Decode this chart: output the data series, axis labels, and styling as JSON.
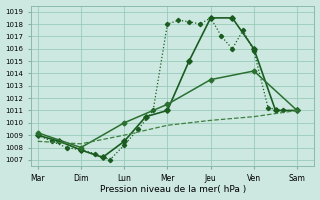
{
  "background_color": "#cce8e0",
  "grid_color": "#99ccbb",
  "xlabel": "Pression niveau de la mer( hPa )",
  "x_labels": [
    "Mar",
    "Dim",
    "Lun",
    "Mer",
    "Jeu",
    "Ven",
    "Sam"
  ],
  "x_positions": [
    0,
    1,
    2,
    3,
    4,
    5,
    6
  ],
  "xlim": [
    -0.15,
    6.4
  ],
  "ylim": [
    1006.5,
    1019.5
  ],
  "yticks": [
    1007,
    1008,
    1009,
    1010,
    1011,
    1012,
    1013,
    1014,
    1015,
    1016,
    1017,
    1018,
    1019
  ],
  "lines": [
    {
      "x": [
        0,
        0.33,
        0.67,
        1,
        1.33,
        1.67,
        2,
        2.33,
        2.67,
        3,
        3.25,
        3.5,
        3.75,
        4,
        4.25,
        4.5,
        4.75,
        5,
        5.33,
        5.67,
        6
      ],
      "y": [
        1009.0,
        1008.5,
        1008.0,
        1007.8,
        1007.5,
        1007.0,
        1008.2,
        1009.5,
        1011.0,
        1018.0,
        1018.3,
        1018.2,
        1018.0,
        1018.5,
        1017.0,
        1016.0,
        1017.5,
        1015.8,
        1011.2,
        1011.0,
        1011.0
      ],
      "color": "#1a5c20",
      "linewidth": 0.9,
      "linestyle": "dotted",
      "marker": "D",
      "markersize": 2.2
    },
    {
      "x": [
        0,
        0.5,
        1,
        1.5,
        2,
        2.5,
        3,
        3.5,
        4,
        4.5,
        5,
        5.5,
        6
      ],
      "y": [
        1009.0,
        1008.5,
        1007.8,
        1007.2,
        1008.5,
        1010.5,
        1011.0,
        1015.0,
        1018.5,
        1018.5,
        1016.0,
        1011.0,
        1011.0
      ],
      "color": "#1a5c20",
      "linewidth": 1.2,
      "linestyle": "solid",
      "marker": "D",
      "markersize": 2.8
    },
    {
      "x": [
        0,
        1,
        2,
        3,
        4,
        5,
        6
      ],
      "y": [
        1009.2,
        1008.0,
        1010.0,
        1011.5,
        1013.5,
        1014.2,
        1011.0
      ],
      "color": "#2a7030",
      "linewidth": 1.1,
      "linestyle": "solid",
      "marker": "D",
      "markersize": 2.5
    },
    {
      "x": [
        0,
        1,
        2,
        3,
        4,
        5,
        6
      ],
      "y": [
        1008.5,
        1008.3,
        1009.0,
        1009.8,
        1010.2,
        1010.5,
        1011.0
      ],
      "color": "#3d8040",
      "linewidth": 0.9,
      "linestyle": "--",
      "marker": null,
      "markersize": 0
    }
  ]
}
